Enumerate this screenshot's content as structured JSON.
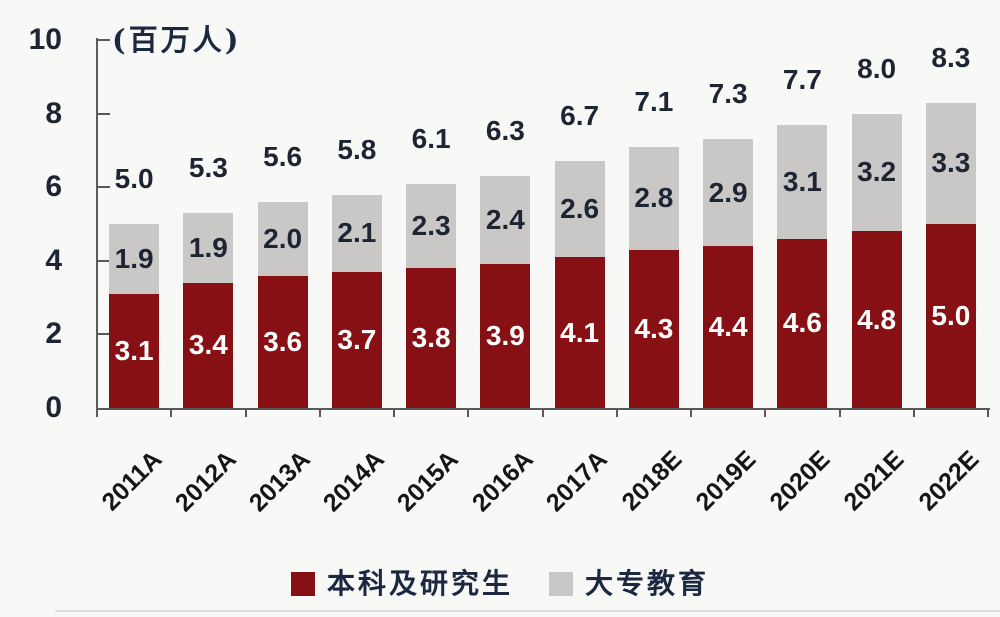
{
  "chart": {
    "background_color": "#f8f8f7",
    "axis_color": "#595959",
    "text_color": "#1d2533",
    "x_label_color": "#161616",
    "value_label_on_primary_color": "#ffffff",
    "value_label_on_secondary_color": "#1d2533"
  },
  "chart_data": {
    "type": "bar",
    "stacked": true,
    "title": "",
    "xlabel": "",
    "ylabel": "(百万人)",
    "categories": [
      "2011A",
      "2012A",
      "2013A",
      "2014A",
      "2015A",
      "2016A",
      "2017A",
      "2018E",
      "2019E",
      "2020E",
      "2021E",
      "2022E"
    ],
    "series": [
      {
        "name": "本科及研究生",
        "color": "#861013",
        "values": [
          3.1,
          3.4,
          3.6,
          3.7,
          3.8,
          3.9,
          4.1,
          4.3,
          4.4,
          4.6,
          4.8,
          5.0
        ]
      },
      {
        "name": "大专教育",
        "color": "#c9c8c7",
        "values": [
          1.9,
          1.9,
          2.0,
          2.1,
          2.3,
          2.4,
          2.6,
          2.8,
          2.9,
          3.1,
          3.2,
          3.3
        ]
      }
    ],
    "totals": [
      5.0,
      5.3,
      5.6,
      5.8,
      6.1,
      6.3,
      6.7,
      7.1,
      7.3,
      7.7,
      8.0,
      8.3
    ],
    "ylim": [
      0,
      10
    ],
    "yticks": [
      0,
      2,
      4,
      6,
      8,
      10
    ],
    "grid": false,
    "legend_position": "bottom"
  }
}
